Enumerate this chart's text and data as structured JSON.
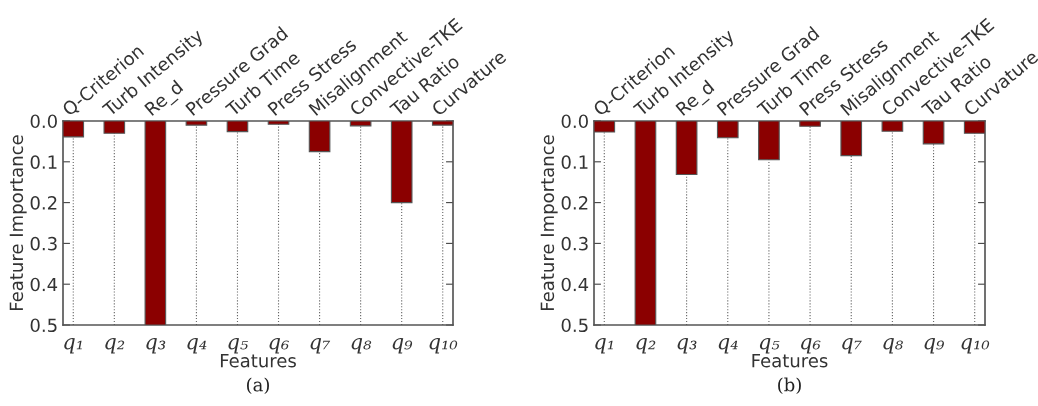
{
  "chart_data": [
    {
      "type": "bar",
      "categories": [
        "q₁",
        "q₂",
        "q₃",
        "q₄",
        "q₅",
        "q₆",
        "q₇",
        "q₈",
        "q₉",
        "q₁₀"
      ],
      "values": [
        0.039,
        0.03,
        0.5,
        0.01,
        0.026,
        0.008,
        0.075,
        0.012,
        0.2,
        0.01
      ],
      "color": "#8b0000",
      "xlabel": "Features",
      "ylabel": "Feature Importance",
      "ylim": [
        0.5,
        0.0
      ],
      "yticks": [
        {
          "value": 0,
          "label": "0.0"
        },
        0.1,
        0.2,
        0.3,
        0.4,
        0.5
      ],
      "grid": "x",
      "line_style": "dotted",
      "annotations": [
        "Q-Criterion",
        "Turb Intensity",
        "Re_d",
        "Pressure Grad",
        "Turb Time",
        "Press Stress",
        "Misalignment",
        "Convective-TKE",
        "Tau Ratio",
        "Curvature",
        "(a)"
      ]
    },
    {
      "type": "bar",
      "categories": [
        "q₁",
        "q₂",
        "q₃",
        "q₄",
        "q₅",
        "q₆",
        "q₇",
        "q₈",
        "q₉",
        "q₁₀"
      ],
      "values": [
        0.027,
        0.5,
        0.131,
        0.041,
        0.095,
        0.013,
        0.085,
        0.025,
        0.056,
        0.03
      ],
      "color": "#8b0000",
      "xlabel": "Features",
      "ylabel": "Feature Importance",
      "ylim": [
        0.5,
        0.0
      ],
      "yticks": [
        {
          "value": 0,
          "label": "0.0"
        },
        0.1,
        0.2,
        0.3,
        0.4,
        0.5
      ],
      "grid": "x",
      "line_style": "dotted",
      "annotations": [
        "Q-Criterion",
        "Turb Intensity",
        "Re_d",
        "Pressure Grad",
        "Turb Time",
        "Press Stress",
        "Misalignment",
        "Convective-TKE",
        "Tau Ratio",
        "Curvature",
        "(b)"
      ]
    }
  ]
}
